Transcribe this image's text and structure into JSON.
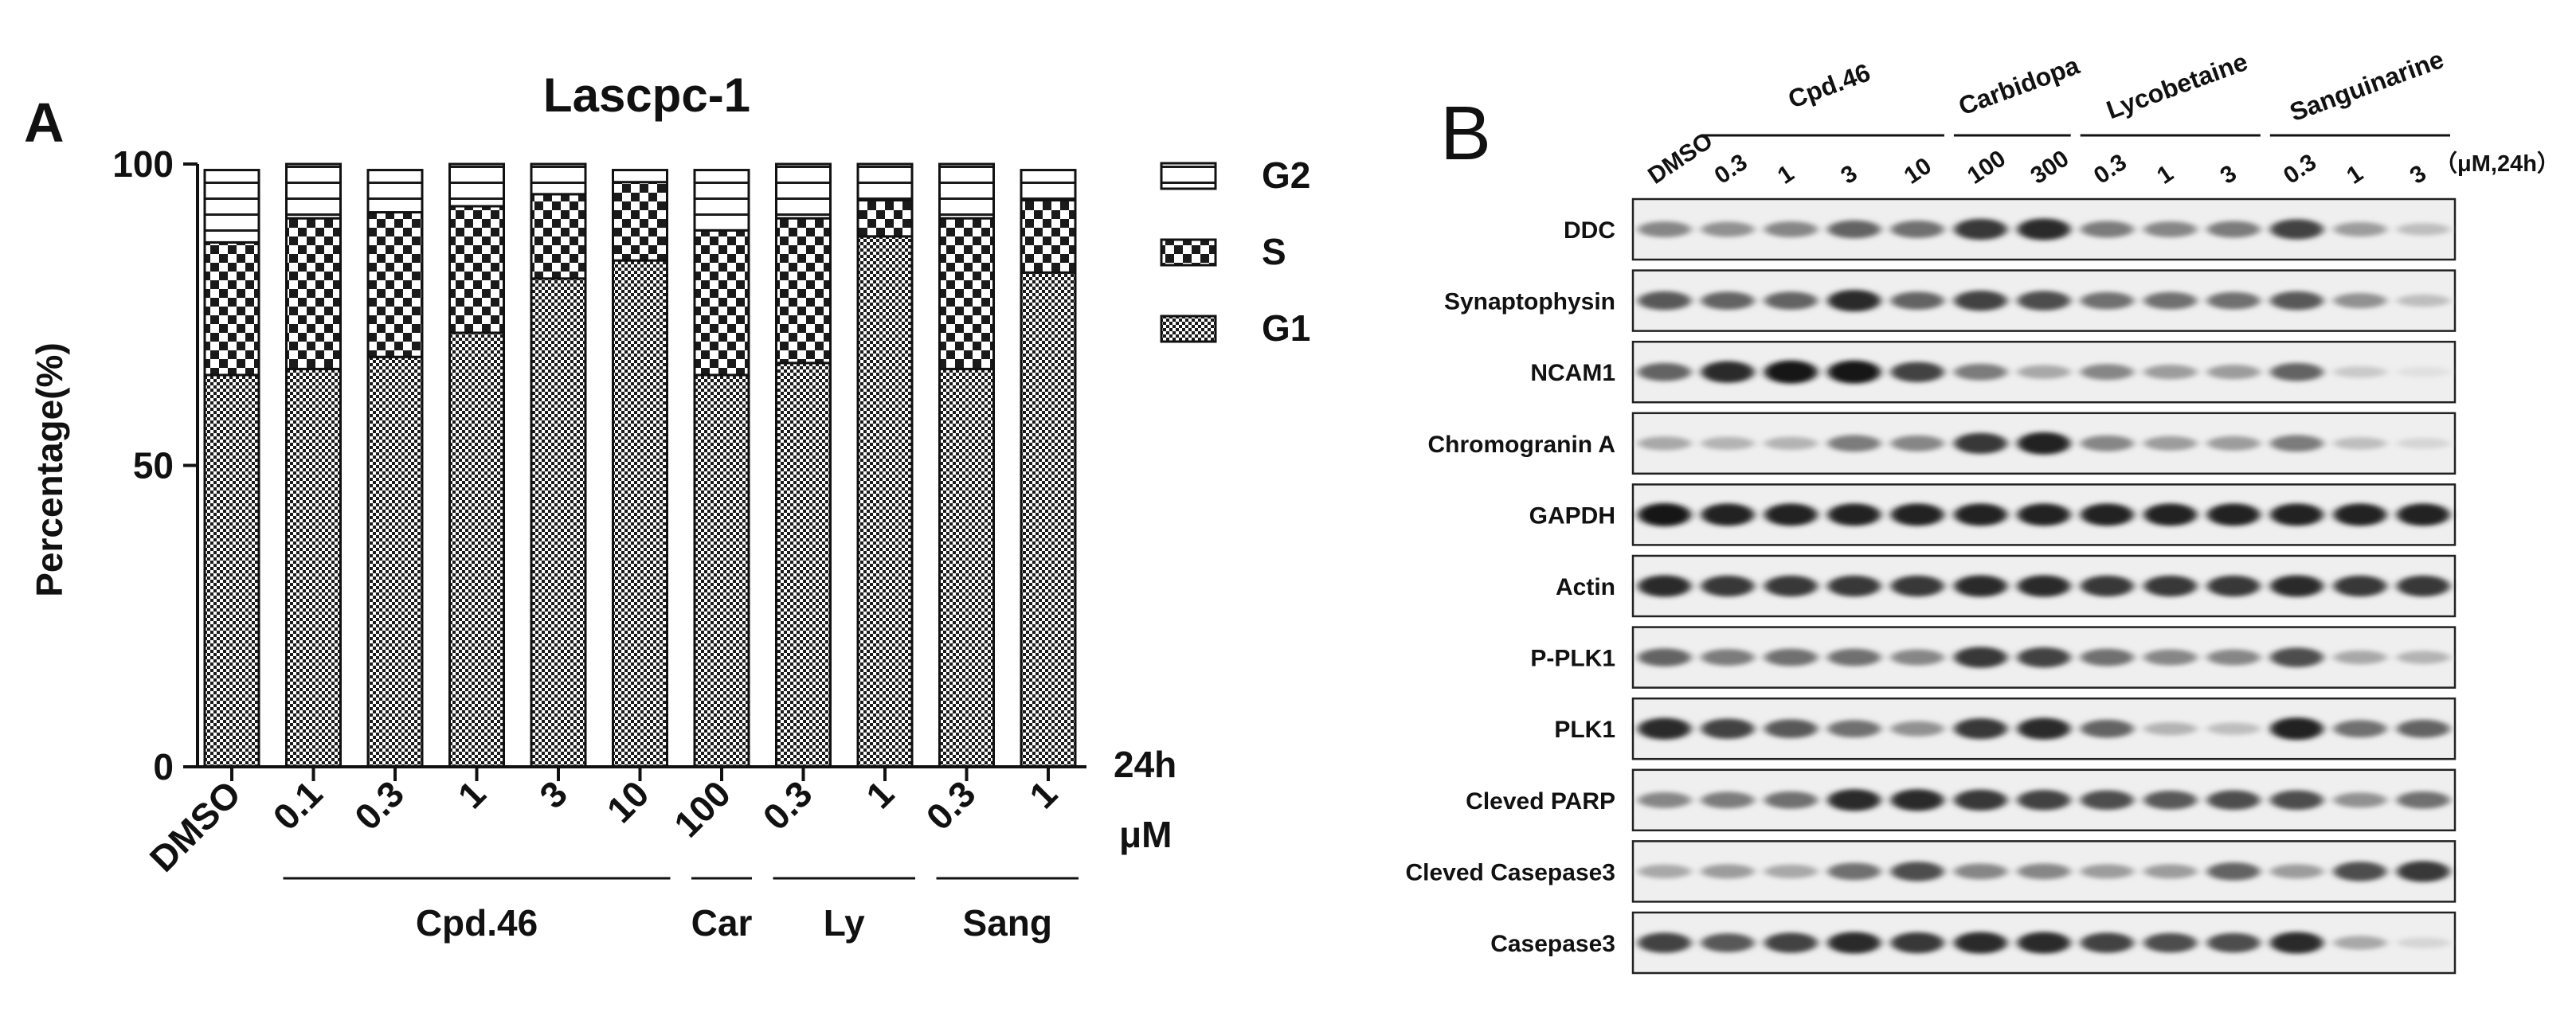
{
  "panel_a": {
    "letter": "A",
    "chart_data": {
      "type": "bar",
      "stacked": true,
      "title": "Lascpc-1",
      "ylabel": "Percentage(%)",
      "xlabel": "",
      "ylim": [
        0,
        100
      ],
      "yticks": [
        "0",
        "50",
        "100"
      ],
      "time_label": "24h",
      "unit_label": "μM",
      "categories": [
        "DMSO",
        "0.1",
        "0.3",
        "1",
        "3",
        "10",
        "100",
        "0.3",
        "1",
        "0.3",
        "1"
      ],
      "series": [
        {
          "name": "G1",
          "values": [
            65,
            66,
            68,
            72,
            81,
            84,
            65,
            67,
            88,
            66,
            82
          ]
        },
        {
          "name": "S",
          "values": [
            22,
            25,
            24,
            21,
            14,
            13,
            24,
            24,
            6,
            25,
            12
          ]
        },
        {
          "name": "G2",
          "values": [
            12,
            9,
            7,
            7,
            5,
            2,
            10,
            9,
            6,
            9,
            5
          ]
        }
      ],
      "groups": [
        {
          "label": "Cpd.46",
          "start": 1,
          "end": 5
        },
        {
          "label": "Car",
          "start": 6,
          "end": 6
        },
        {
          "label": "Ly",
          "start": 7,
          "end": 8
        },
        {
          "label": "Sang",
          "start": 9,
          "end": 10
        }
      ],
      "legend": {
        "placement": "right",
        "order": [
          "G2",
          "S",
          "G1"
        ]
      },
      "grid": false
    }
  },
  "panel_b": {
    "letter": "B",
    "unit_label": "（μM,24h）",
    "lanes": [
      "DMSO",
      "0.3",
      "1",
      "3",
      "10",
      "100",
      "300",
      "0.3",
      "1",
      "3",
      "0.3",
      "1",
      "3"
    ],
    "groups": [
      {
        "label": "Cpd.46",
        "start": 1,
        "end": 4
      },
      {
        "label": "Carbidopa",
        "start": 5,
        "end": 6
      },
      {
        "label": "Lycobetaine",
        "start": 7,
        "end": 9
      },
      {
        "label": "Sanguinarine",
        "start": 10,
        "end": 12
      }
    ],
    "blots": [
      {
        "label": "DDC",
        "intensity": [
          0.45,
          0.4,
          0.45,
          0.6,
          0.55,
          0.8,
          0.85,
          0.5,
          0.45,
          0.5,
          0.75,
          0.35,
          0.2
        ]
      },
      {
        "label": "Synaptophysin",
        "intensity": [
          0.65,
          0.6,
          0.6,
          0.85,
          0.6,
          0.75,
          0.7,
          0.55,
          0.55,
          0.55,
          0.65,
          0.4,
          0.2
        ]
      },
      {
        "label": "NCAM1",
        "intensity": [
          0.6,
          0.85,
          0.95,
          0.95,
          0.75,
          0.5,
          0.3,
          0.45,
          0.35,
          0.35,
          0.6,
          0.15,
          0.05
        ]
      },
      {
        "label": "Chromogranin A",
        "intensity": [
          0.3,
          0.25,
          0.25,
          0.5,
          0.45,
          0.8,
          0.9,
          0.45,
          0.35,
          0.35,
          0.5,
          0.2,
          0.1
        ]
      },
      {
        "label": "GAPDH",
        "intensity": [
          0.95,
          0.9,
          0.9,
          0.9,
          0.9,
          0.9,
          0.9,
          0.9,
          0.9,
          0.9,
          0.9,
          0.9,
          0.9
        ]
      },
      {
        "label": "Actin",
        "intensity": [
          0.85,
          0.8,
          0.8,
          0.8,
          0.8,
          0.85,
          0.85,
          0.8,
          0.8,
          0.8,
          0.85,
          0.8,
          0.8
        ]
      },
      {
        "label": "P-PLK1",
        "intensity": [
          0.6,
          0.5,
          0.55,
          0.55,
          0.45,
          0.8,
          0.75,
          0.55,
          0.45,
          0.45,
          0.7,
          0.3,
          0.25
        ]
      },
      {
        "label": "PLK1",
        "intensity": [
          0.85,
          0.75,
          0.65,
          0.55,
          0.4,
          0.8,
          0.85,
          0.6,
          0.25,
          0.2,
          0.9,
          0.55,
          0.6
        ]
      },
      {
        "label": "Cleved PARP",
        "intensity": [
          0.45,
          0.5,
          0.55,
          0.85,
          0.85,
          0.8,
          0.75,
          0.7,
          0.65,
          0.7,
          0.7,
          0.4,
          0.55
        ]
      },
      {
        "label": "Cleved Casepase3",
        "intensity": [
          0.3,
          0.35,
          0.3,
          0.55,
          0.7,
          0.45,
          0.45,
          0.35,
          0.35,
          0.6,
          0.35,
          0.7,
          0.8
        ]
      },
      {
        "label": "Casepase3",
        "intensity": [
          0.75,
          0.65,
          0.75,
          0.85,
          0.8,
          0.85,
          0.85,
          0.75,
          0.7,
          0.7,
          0.85,
          0.3,
          0.1
        ]
      }
    ]
  }
}
